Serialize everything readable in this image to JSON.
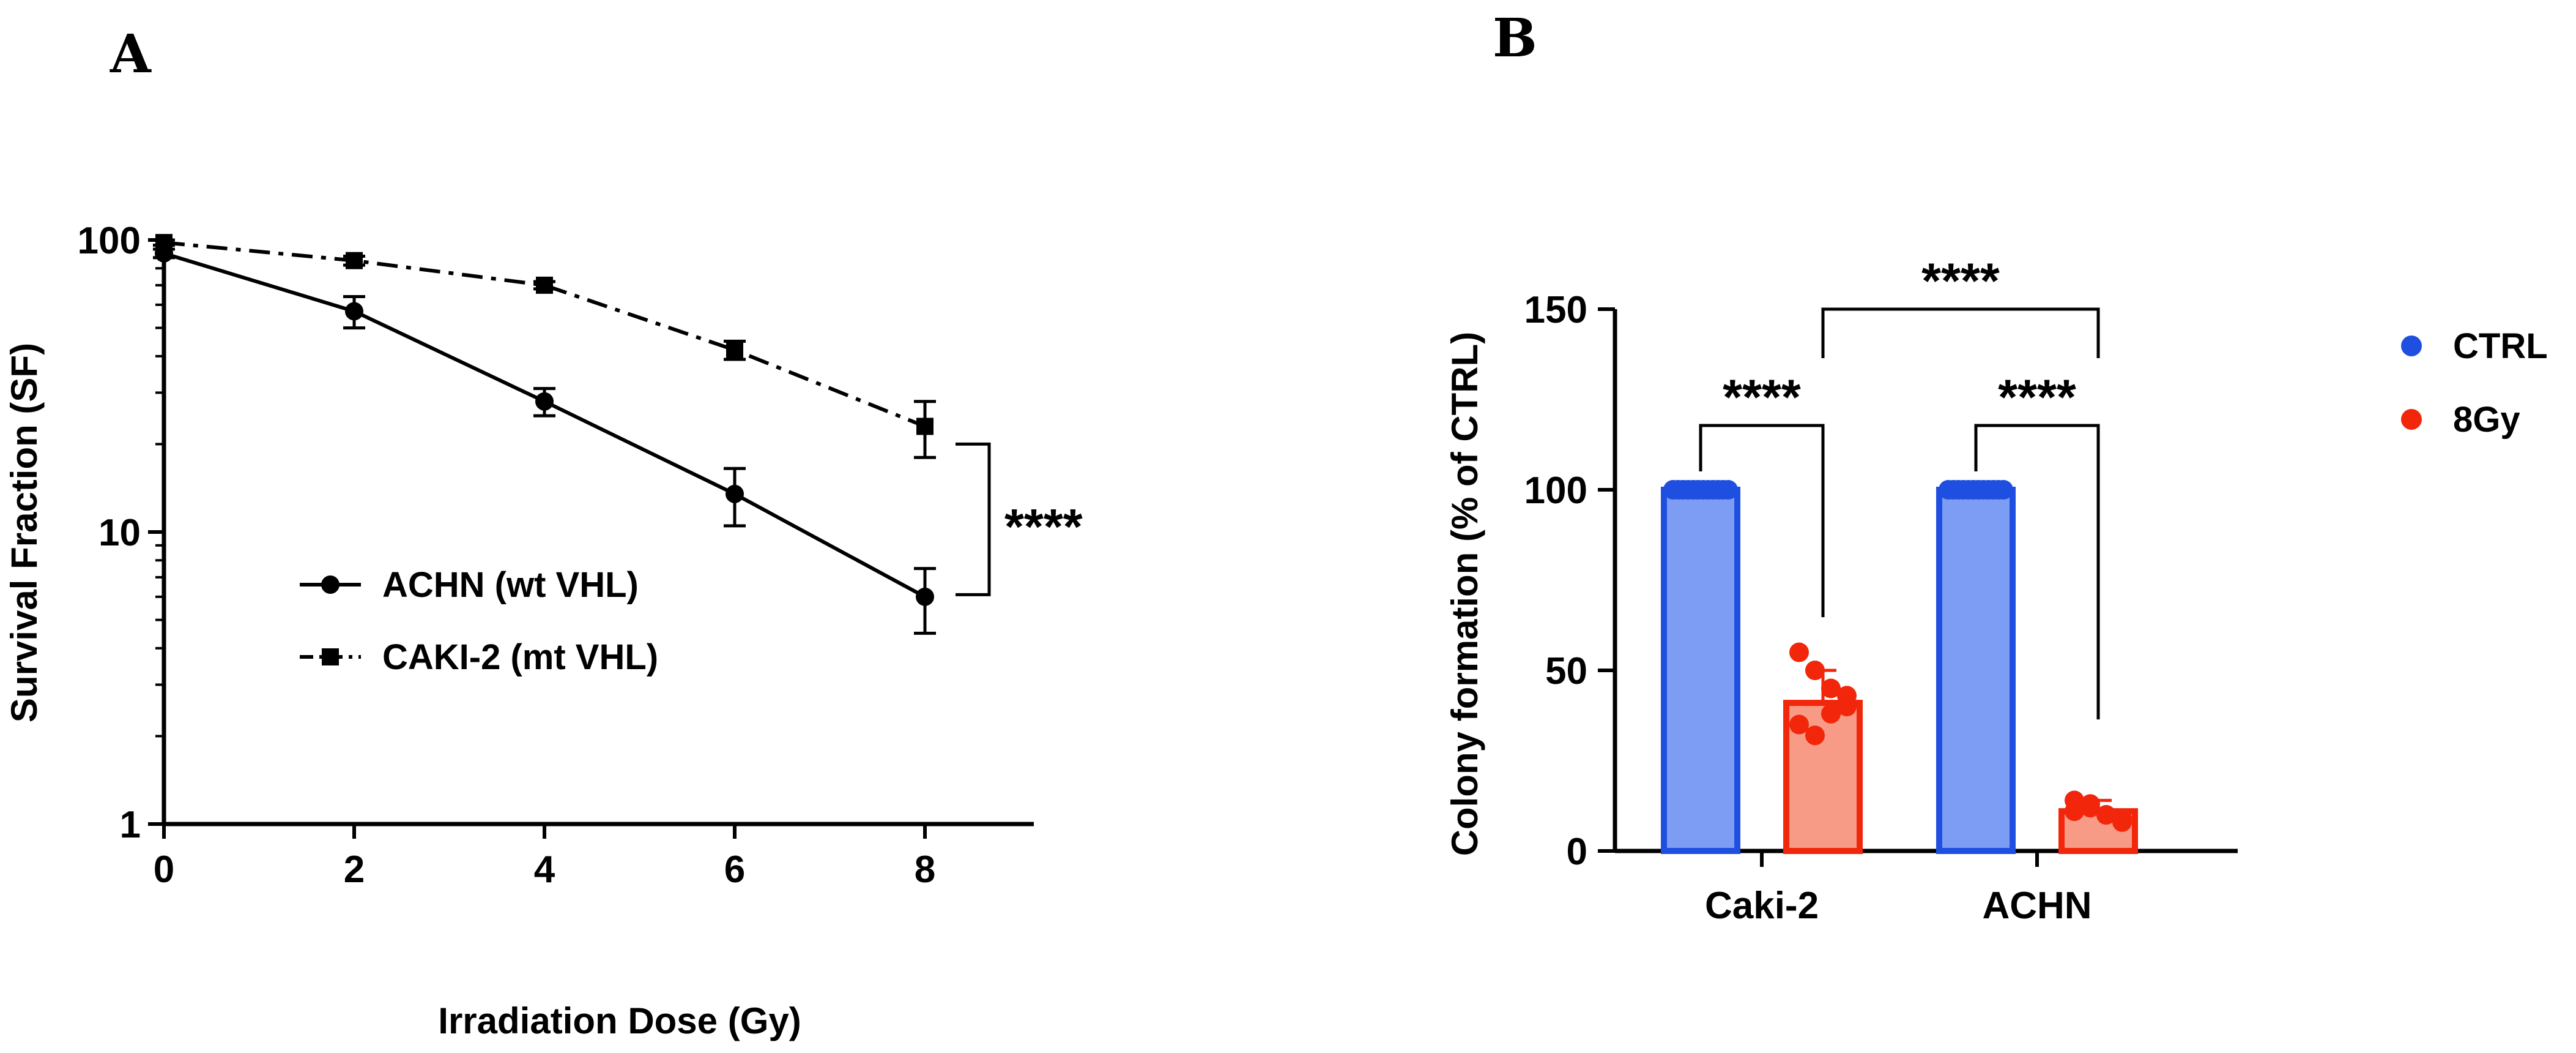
{
  "chart_data": [
    {
      "panel": "A",
      "type": "line",
      "xlabel": "Irradiation Dose (Gy)",
      "ylabel": "Survival Fraction (SF)",
      "yscale": "log",
      "xlim": [
        0,
        9
      ],
      "ylim": [
        1,
        100
      ],
      "xticks": [
        "0",
        "2",
        "4",
        "6",
        "8"
      ],
      "yticks": [
        "1",
        "10",
        "100"
      ],
      "x": [
        0,
        2,
        4,
        6,
        8
      ],
      "series": [
        {
          "name": "ACHN (wt VHL)",
          "marker": "circle",
          "line": "solid",
          "values": [
            90,
            57,
            28,
            13.5,
            6
          ],
          "err_low": [
            3,
            7,
            3,
            3,
            1.5
          ],
          "err_high": [
            3,
            7,
            3,
            3,
            1.5
          ]
        },
        {
          "name": "CAKI-2 (mt VHL)",
          "marker": "square",
          "line": "dash-dot",
          "values": [
            98,
            85,
            70,
            42,
            23
          ],
          "err_low": [
            2,
            3,
            2,
            3,
            5
          ],
          "err_high": [
            2,
            3,
            2,
            3,
            5
          ]
        }
      ],
      "annotation": "****",
      "legend_position": "center-left"
    },
    {
      "panel": "B",
      "type": "bar",
      "ylabel": "Colony formation (% of CTRL)",
      "ylim": [
        0,
        150
      ],
      "yticks": [
        "0",
        "50",
        "100",
        "150"
      ],
      "categories": [
        "Caki-2",
        "ACHN"
      ],
      "series": [
        {
          "name": "CTRL",
          "values": [
            100,
            100
          ],
          "err": [
            0,
            0
          ],
          "color": "#1f4fe0",
          "fill": "#7d9df5",
          "points": [
            [
              100,
              100,
              100,
              100,
              100,
              100,
              100,
              100,
              100,
              100,
              100,
              100
            ],
            [
              100,
              100,
              100,
              100,
              100,
              100,
              100,
              100,
              100,
              100,
              100,
              100
            ]
          ]
        },
        {
          "name": "8Gy",
          "values": [
            41,
            11
          ],
          "err": [
            9,
            3
          ],
          "color": "#f1260a",
          "fill": "#f79a86",
          "points": [
            [
              55,
              50,
              45,
              40,
              35,
              32,
              38,
              43
            ],
            [
              14,
              12,
              10,
              9,
              11,
              13,
              10,
              8
            ]
          ]
        }
      ],
      "comparisons": [
        "****",
        "****",
        "****"
      ],
      "legend_position": "right"
    }
  ],
  "colors": {
    "ctrl": "#1f4fe0",
    "ctrl_fill": "#7d9df5",
    "gy8": "#f1260a",
    "gy8_fill": "#f79a86"
  }
}
